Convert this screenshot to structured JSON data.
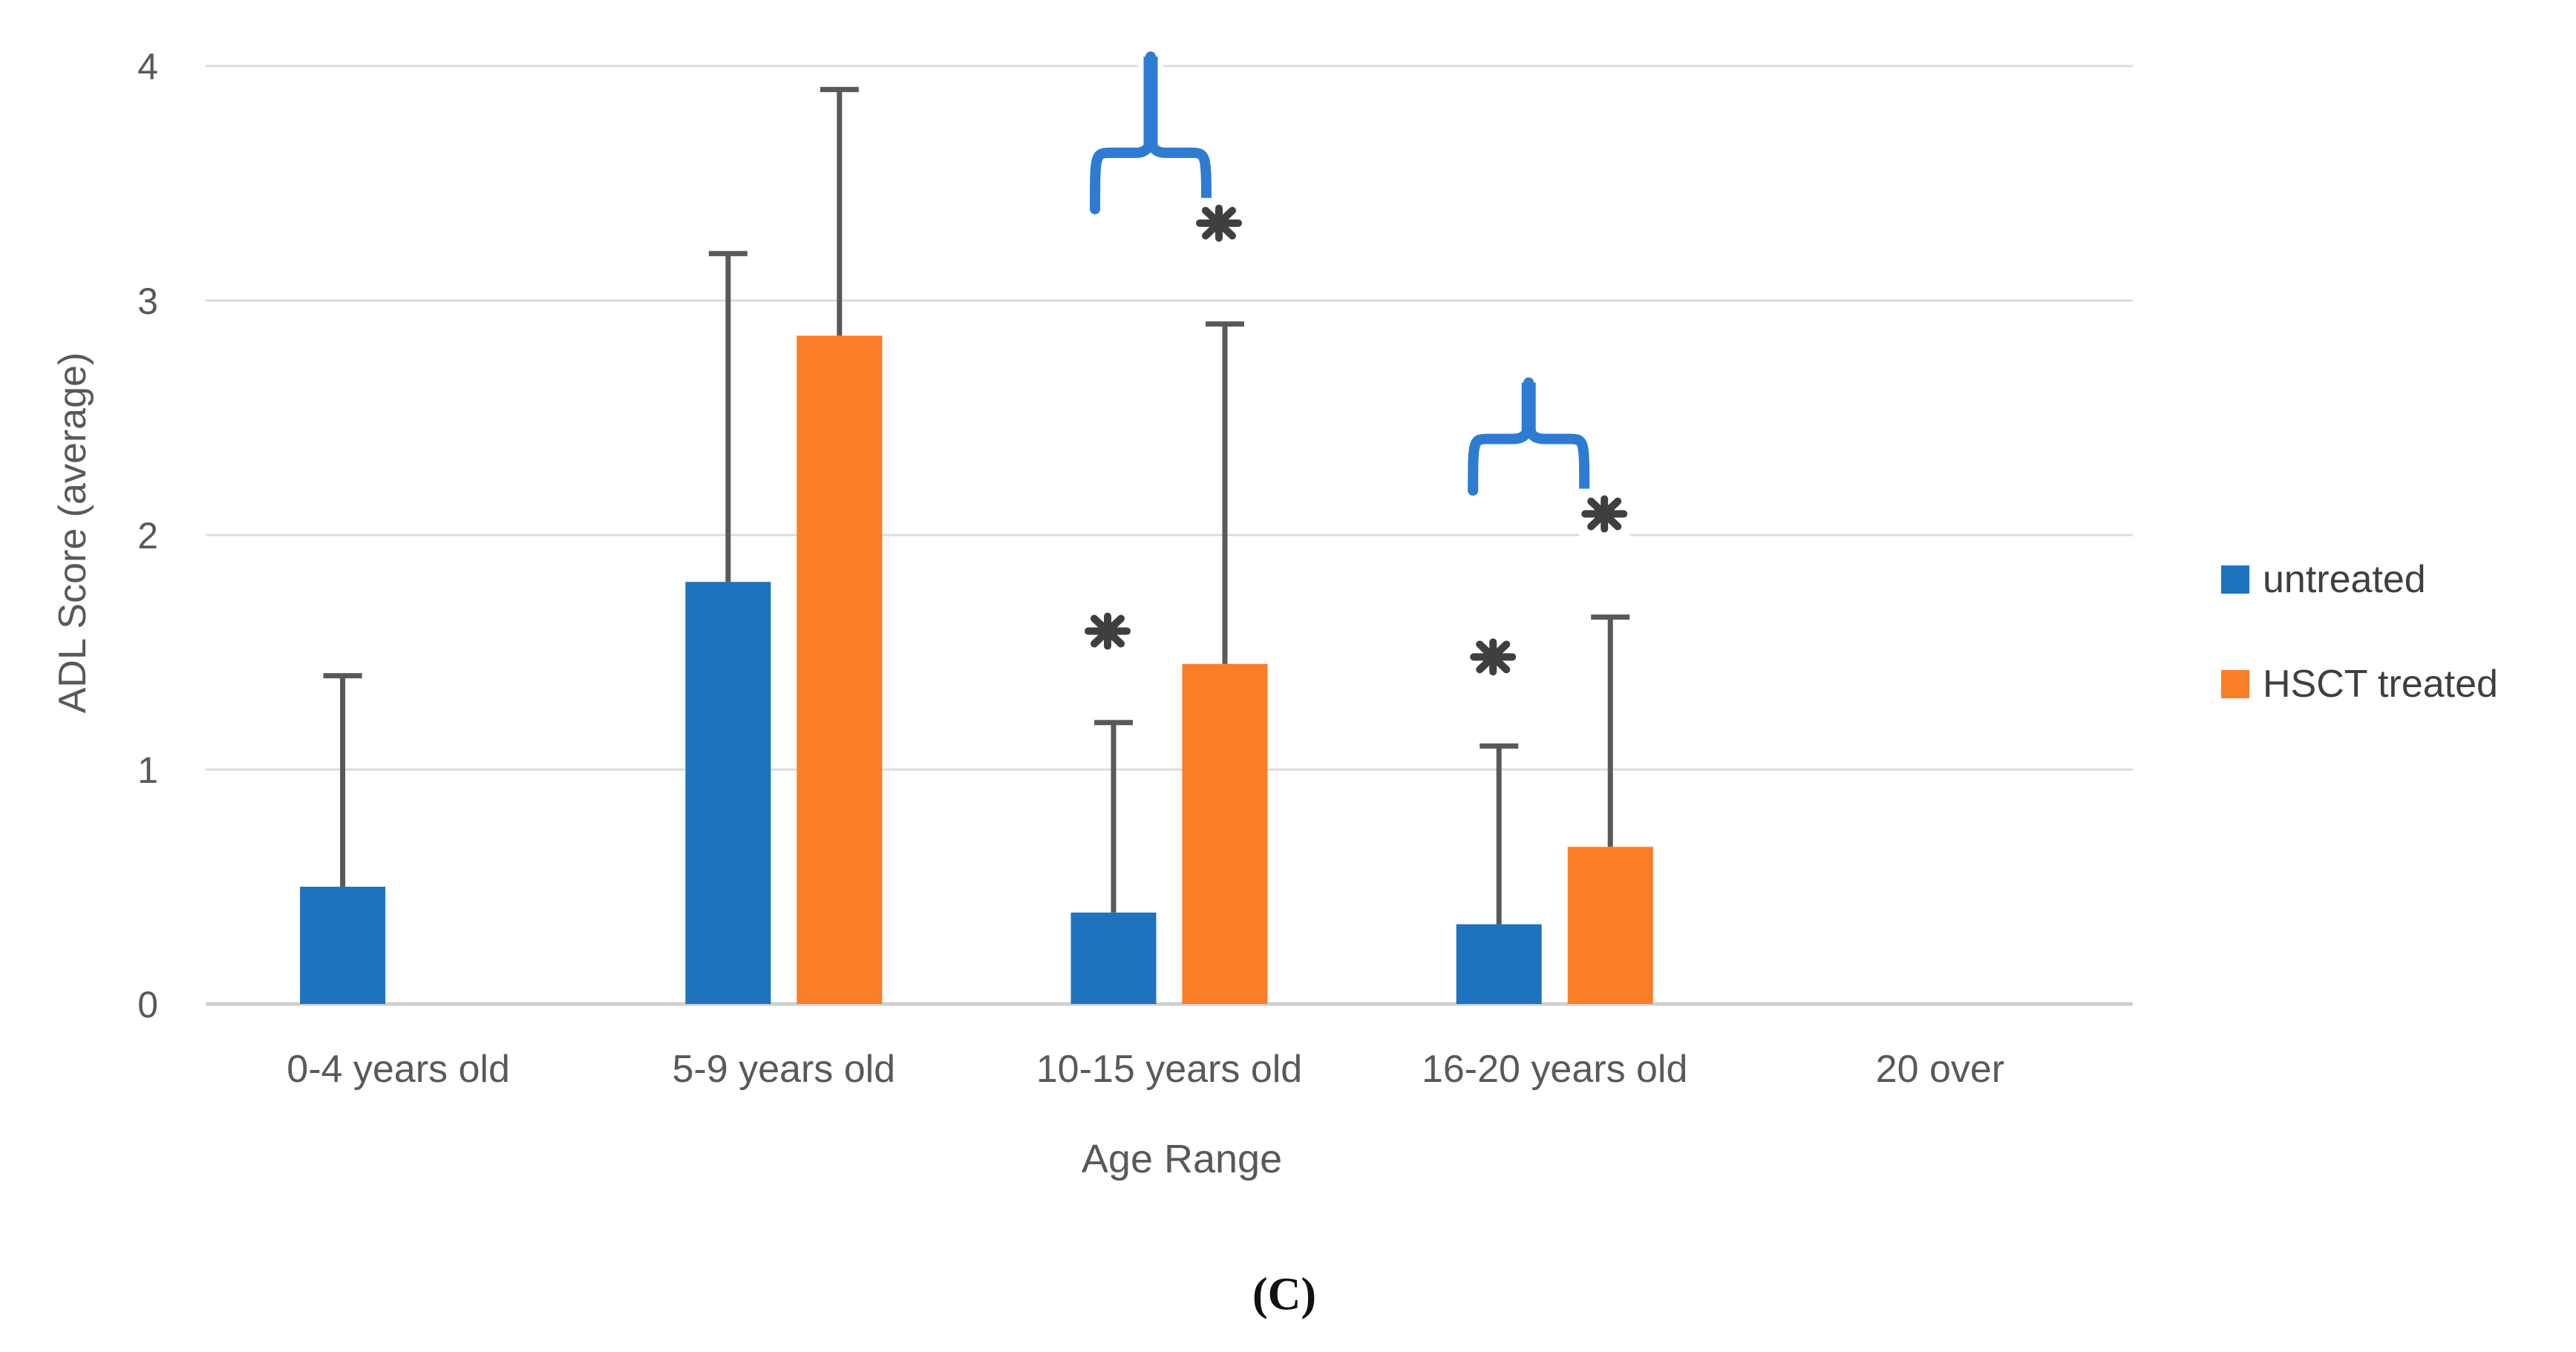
{
  "figure": {
    "caption": "(C)"
  },
  "legend": {
    "items": [
      {
        "label": "untreated",
        "color": "#1E73BE",
        "swatch": "blue-square-icon"
      },
      {
        "label": "HSCT treated",
        "color": "#F97E27",
        "swatch": "orange-square-icon"
      }
    ]
  },
  "chart_data": {
    "type": "bar",
    "title": "",
    "xlabel": "Age Range",
    "ylabel": "ADL Score (average)",
    "categories": [
      "0-4 years old",
      "5-9 years old",
      "10-15 years old",
      "16-20 years old",
      "20 over"
    ],
    "y_ticks": [
      0,
      1,
      2,
      3,
      4
    ],
    "ylim": [
      0,
      4
    ],
    "grid": true,
    "legend_position": "right",
    "series": [
      {
        "name": "untreated",
        "color": "#1E73BE",
        "values": [
          0.5,
          1.8,
          0.39,
          0.34,
          null
        ],
        "error_top": [
          1.4,
          3.2,
          1.2,
          1.1,
          null
        ]
      },
      {
        "name": "HSCT treated",
        "color": "#F97E27",
        "values": [
          null,
          2.85,
          1.45,
          0.67,
          null
        ],
        "error_top": [
          null,
          3.9,
          2.9,
          1.65,
          null
        ]
      }
    ],
    "annotations": {
      "asterisks": [
        {
          "group": 2,
          "series": 0,
          "y_value": 1.59,
          "label": "*"
        },
        {
          "group": 2,
          "series": 1,
          "y_value": 3.33,
          "label": "*"
        },
        {
          "group": 3,
          "series": 0,
          "y_value": 1.48,
          "label": "*"
        },
        {
          "group": 3,
          "series": 1,
          "y_value": 2.09,
          "label": "*"
        }
      ],
      "braces": [
        {
          "group": 2,
          "bar_y": 3.63,
          "hook_y": 3.39,
          "spike_top_y": 4.04,
          "x_shift": -25,
          "color": "#2E7BD2"
        },
        {
          "group": 3,
          "bar_y": 2.41,
          "hook_y": 2.19,
          "spike_top_y": 2.65,
          "x_shift": -35,
          "color": "#2E7BD2"
        }
      ]
    },
    "axis_color": "#595959",
    "gridline_color": "#DCDCDC",
    "baseline_color": "#CFCFCF",
    "error_bar_color": "#595959",
    "asterisk_color": "#3F3F3F"
  }
}
